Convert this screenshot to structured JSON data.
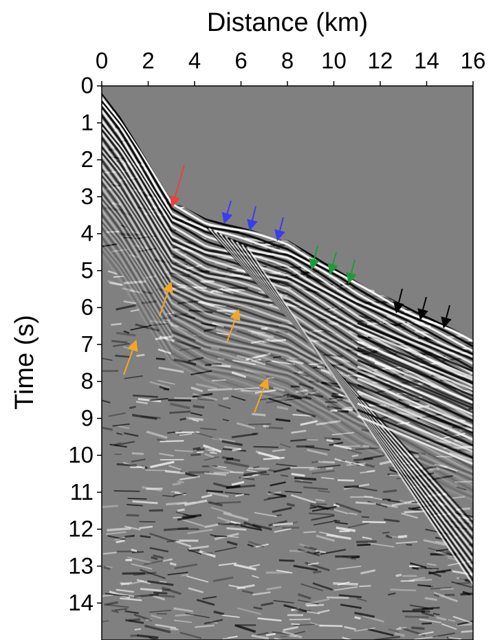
{
  "chart_data": {
    "type": "image",
    "xlabel": "Distance (km)",
    "ylabel": "Time (s)",
    "x_axis_side": "top",
    "xlim": [
      0,
      16
    ],
    "xticks": [
      0,
      2,
      4,
      6,
      8,
      10,
      12,
      14,
      16
    ],
    "ylim": [
      0,
      15
    ],
    "yticks": [
      0,
      1,
      2,
      3,
      4,
      5,
      6,
      7,
      8,
      9,
      10,
      11,
      12,
      13,
      14
    ]
  }
}
